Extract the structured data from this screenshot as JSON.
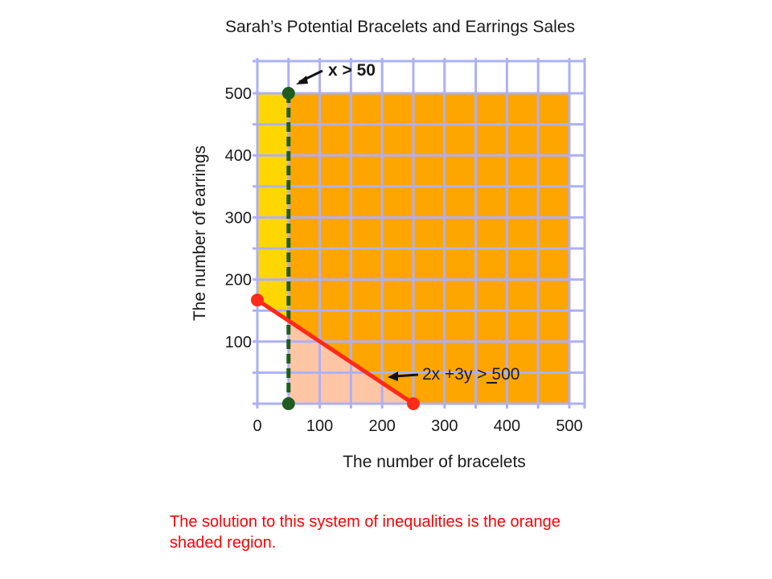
{
  "title": "Sarah’s Potential Bracelets and Earrings Sales",
  "caption": "The solution to this system of inequalities is the orange shaded region.",
  "colors": {
    "grid": "#aeb0f4",
    "orange_region": "#ffa500",
    "yellow_region": "#ffd700",
    "pink_region": "#ffc6a6",
    "constraint_red": "#ff2a1a",
    "constraint_green": "#1f5c1f"
  },
  "chart_data": {
    "type": "inequality-graph",
    "title": "Sarah’s Potential Bracelets and Earrings Sales",
    "xlabel": "The number of bracelets",
    "ylabel": "The number of earrings",
    "xlim": [
      0,
      500
    ],
    "ylim": [
      0,
      500
    ],
    "x_ticks": [
      0,
      100,
      200,
      300,
      400,
      500
    ],
    "y_ticks": [
      100,
      200,
      300,
      400,
      500
    ],
    "grid": true,
    "grid_step": 50,
    "constraints": [
      {
        "label": "x > 50",
        "kind": "vertical-line",
        "x": 50,
        "y_range": [
          0,
          500
        ],
        "style": "dashed",
        "color": "#1f5c1f"
      },
      {
        "label": "2x +3y > 500",
        "kind": "line",
        "points": [
          [
            0,
            167
          ],
          [
            250,
            0
          ]
        ],
        "style": "solid",
        "color": "#ff2a1a"
      }
    ],
    "regions": [
      {
        "name": "solution",
        "color": "#ffa500",
        "x_range": [
          50,
          500
        ],
        "y_range": [
          0,
          500
        ],
        "excludes_below_line": true
      },
      {
        "name": "x-violation",
        "color": "#ffd700",
        "x_range": [
          0,
          50
        ],
        "y_range": [
          0,
          500
        ]
      },
      {
        "name": "line-violation",
        "color": "#ffc6a6"
      }
    ]
  }
}
